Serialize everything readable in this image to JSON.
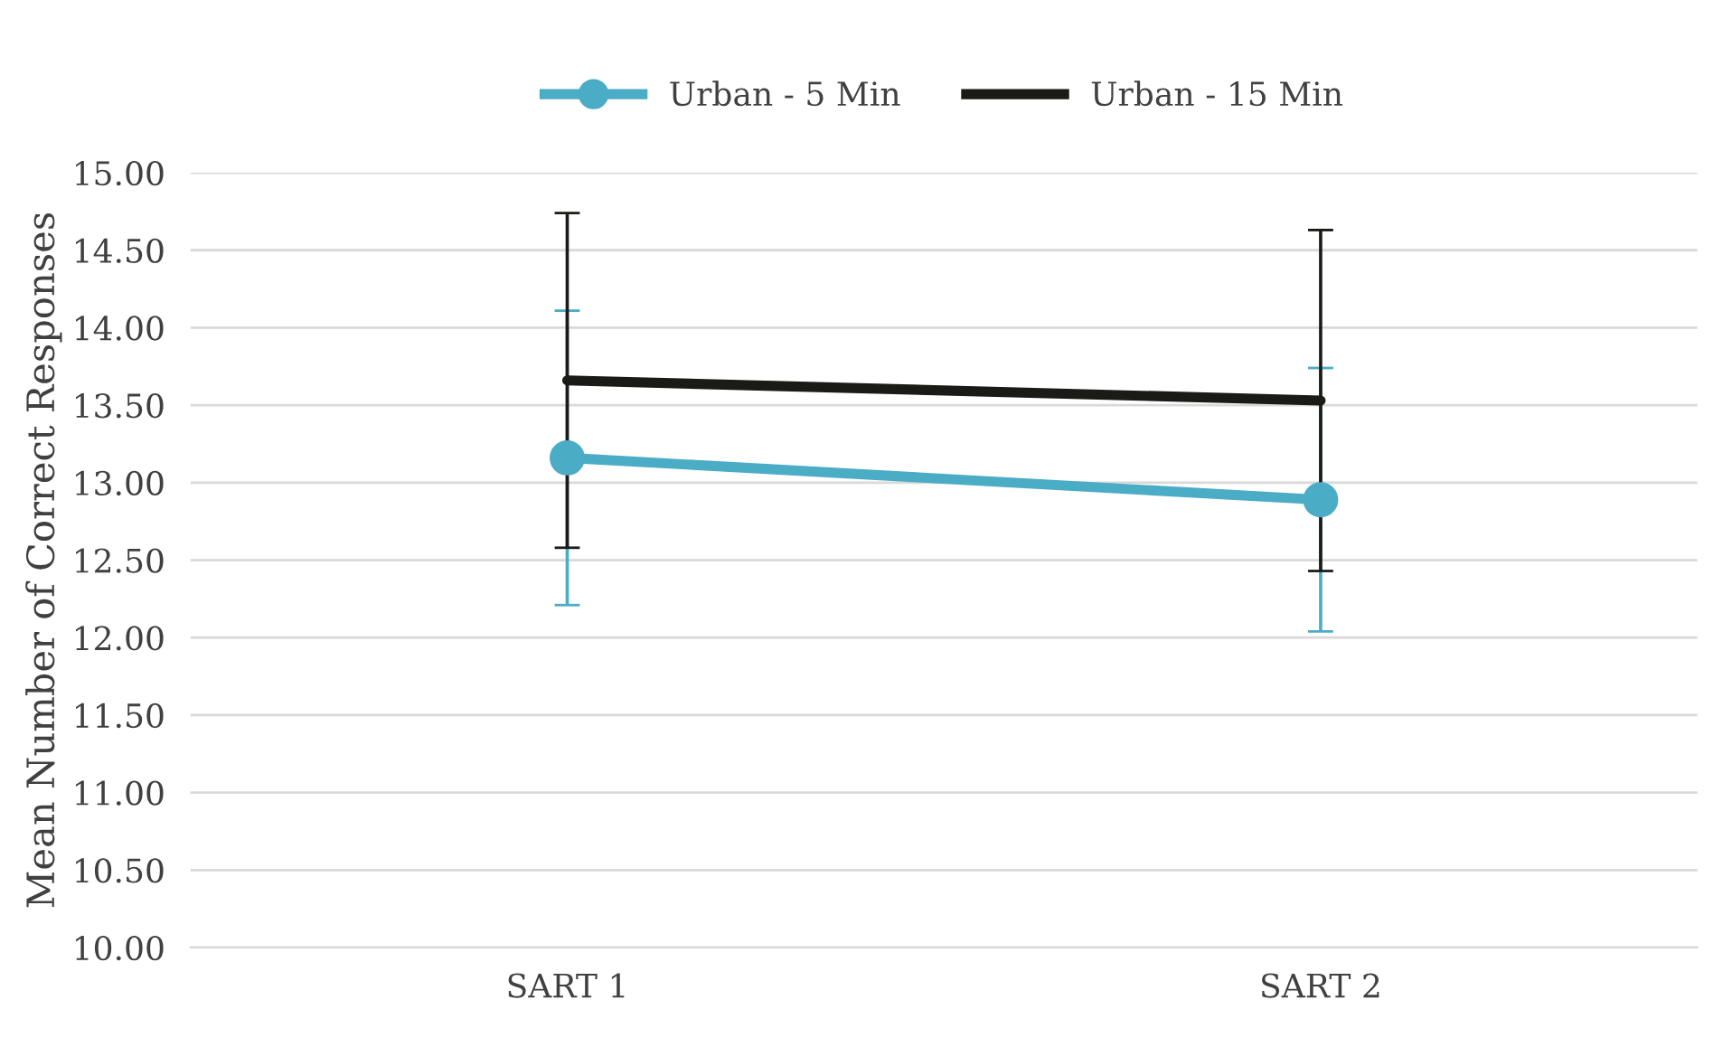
{
  "chart_data": {
    "type": "line",
    "ylabel": "Mean Number of Correct Responses",
    "categories": [
      "SART 1",
      "SART 2"
    ],
    "series": [
      {
        "name": "Urban - 5 Min",
        "color": "#4bacc6",
        "values": [
          13.16,
          12.89
        ],
        "errors": [
          0.95,
          0.85
        ],
        "marker": "circle"
      },
      {
        "name": "Urban - 15 Min",
        "color": "#1a1a17",
        "values": [
          13.66,
          13.53
        ],
        "errors": [
          1.08,
          1.1
        ],
        "marker": "none"
      }
    ],
    "ylim": [
      10,
      15
    ],
    "yticks": [
      {
        "value": 10,
        "label": "10.00"
      },
      {
        "value": 10.5,
        "label": "10.50"
      },
      {
        "value": 11,
        "label": "11.00"
      },
      {
        "value": 11.5,
        "label": "11.50"
      },
      {
        "value": 12,
        "label": "12.00"
      },
      {
        "value": 12.5,
        "label": "12.50"
      },
      {
        "value": 13,
        "label": "13.00"
      },
      {
        "value": 13.5,
        "label": "13.50"
      },
      {
        "value": 14,
        "label": "14.00"
      },
      {
        "value": 14.5,
        "label": "14.50"
      },
      {
        "value": 15,
        "label": "15.00"
      }
    ],
    "grid": "y",
    "legend": "top",
    "line_style": "solid"
  }
}
